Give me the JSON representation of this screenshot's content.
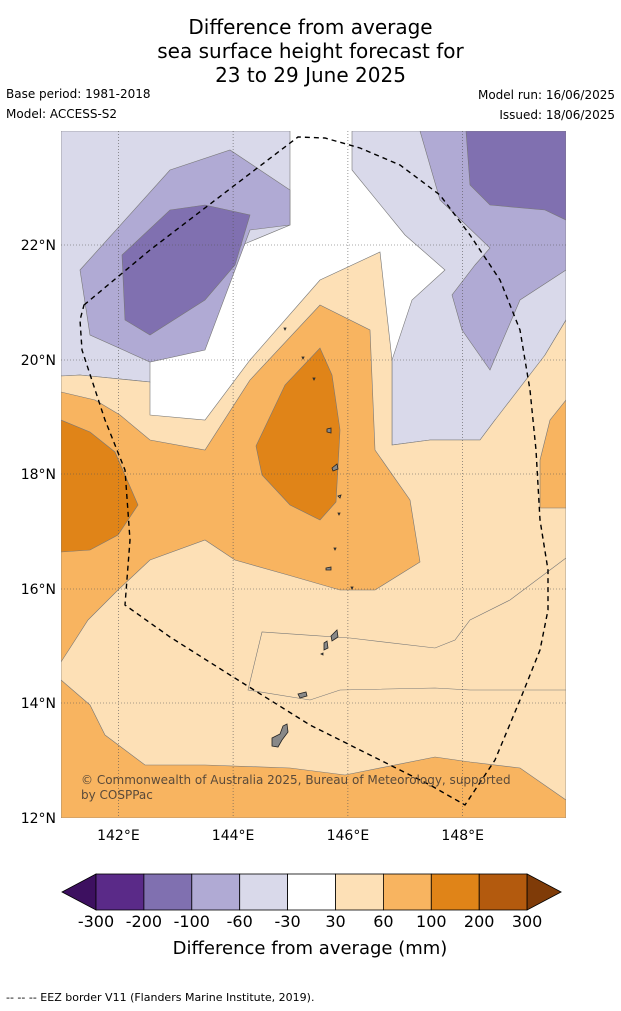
{
  "title_lines": [
    "Difference from average",
    "sea surface height forecast for",
    "23 to 29 June 2025"
  ],
  "meta": {
    "base_period": "Base period: 1981-2018",
    "model": "Model: ACCESS-S2",
    "model_run": "Model run: 16/06/2025",
    "issued": "Issued: 18/06/2025"
  },
  "map": {
    "lon_range": [
      141.0,
      149.8
    ],
    "lat_range": [
      12.0,
      24.0
    ],
    "lon_ticks": [
      "142°E",
      "144°E",
      "146°E",
      "148°E"
    ],
    "lon_tick_values": [
      142,
      144,
      146,
      148
    ],
    "lat_ticks": [
      "12°N",
      "14°N",
      "16°N",
      "18°N",
      "20°N",
      "22°N"
    ],
    "lat_tick_values": [
      12,
      14,
      16,
      18,
      20,
      22
    ],
    "gridlines": true,
    "copyright": "© Commonwealth of Australia 2025, Bureau of Meteorology, supported by COSPPac",
    "copyright_lines": [
      "© Commonwealth of Australia 2025, Bureau of Meteorology, supported",
      "by COSPPac"
    ]
  },
  "colorbar": {
    "title": "Difference from average (mm)",
    "tick_labels": [
      "-300",
      "-200",
      "-100",
      "-60",
      "-30",
      "30",
      "60",
      "100",
      "200",
      "300"
    ],
    "colors": [
      "#3d1060",
      "#5a2a88",
      "#8070b0",
      "#b0aad4",
      "#d9d9ea",
      "#ffffff",
      "#fde0b6",
      "#f8b460",
      "#e08418",
      "#b35a0e",
      "#7f3b08"
    ]
  },
  "legend_footnote": "-- -- -- EEZ border V11 (Flanders Marine Institute, 2019)."
}
